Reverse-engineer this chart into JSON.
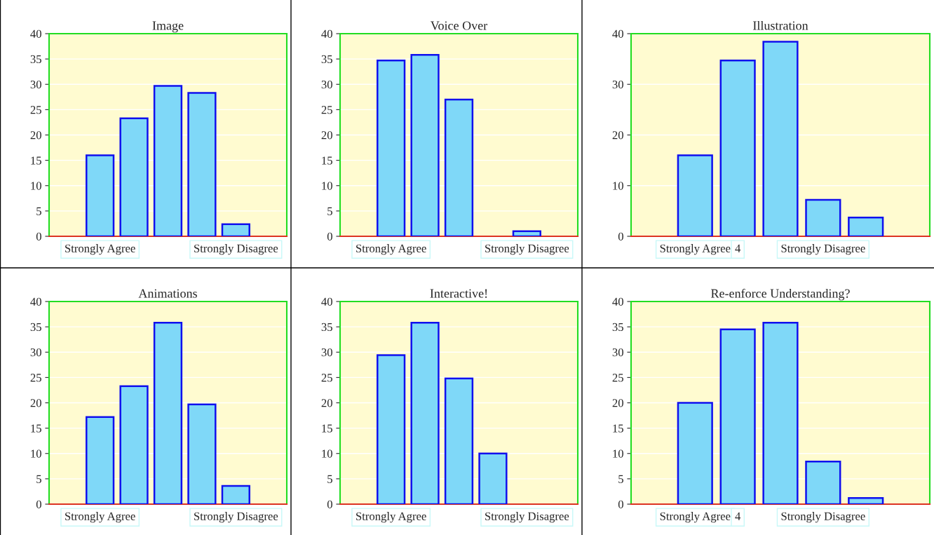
{
  "chart_data": [
    {
      "type": "bar",
      "title": "Image",
      "categories": [
        null,
        "Strongly Agree",
        null,
        null,
        null,
        "Strongly Disagree",
        null
      ],
      "values": [
        null,
        16,
        23.3,
        29.7,
        28.3,
        2.4,
        null
      ],
      "color": "#7fd8f8",
      "ylim": [
        0,
        40
      ],
      "yticks": [
        0,
        5,
        10,
        15,
        20,
        25,
        30,
        35,
        40
      ],
      "grid": "y"
    },
    {
      "type": "bar",
      "title": "Voice Over",
      "categories": [
        null,
        "Strongly Agree",
        null,
        null,
        null,
        "Strongly Disagree",
        null
      ],
      "values": [
        null,
        34.7,
        35.8,
        27,
        null,
        1,
        null
      ],
      "color": "#7fd8f8",
      "ylim": [
        0,
        40
      ],
      "yticks": [
        0,
        5,
        10,
        15,
        20,
        25,
        30,
        35,
        40
      ],
      "grid": "y"
    },
    {
      "type": "bar",
      "title": "Illustration",
      "categories": [
        null,
        "Strongly Agree",
        "4",
        null,
        "Strongly Disagree",
        null,
        null
      ],
      "values": [
        null,
        16,
        34.7,
        38.4,
        7.2,
        3.7,
        null
      ],
      "color": "#7fd8f8",
      "ylim": [
        0,
        40
      ],
      "yticks": [
        0,
        10,
        20,
        30,
        40
      ],
      "grid": "y"
    },
    {
      "type": "bar",
      "title": "Animations",
      "categories": [
        null,
        "Strongly Agree",
        null,
        null,
        null,
        "Strongly Disagree",
        null
      ],
      "values": [
        null,
        17.2,
        23.3,
        35.8,
        19.7,
        3.6,
        null
      ],
      "color": "#7fd8f8",
      "ylim": [
        0,
        40
      ],
      "yticks": [
        0,
        5,
        10,
        15,
        20,
        25,
        30,
        35,
        40
      ],
      "grid": "y"
    },
    {
      "type": "bar",
      "title": "Interactive!",
      "categories": [
        null,
        "Strongly Agree",
        null,
        null,
        null,
        "Strongly Disagree",
        null
      ],
      "values": [
        null,
        29.4,
        35.8,
        24.8,
        10,
        null,
        null
      ],
      "color": "#7fd8f8",
      "ylim": [
        0,
        40
      ],
      "yticks": [
        0,
        5,
        10,
        15,
        20,
        25,
        30,
        35,
        40
      ],
      "grid": "y"
    },
    {
      "type": "bar",
      "title": "Re-enforce Understanding?",
      "categories": [
        null,
        "Strongly Agree",
        "4",
        null,
        "Strongly Disagree",
        null,
        null
      ],
      "values": [
        null,
        20,
        34.5,
        35.8,
        8.4,
        1.2,
        null
      ],
      "color": "#7fd8f8",
      "ylim": [
        0,
        40
      ],
      "yticks": [
        0,
        5,
        10,
        15,
        20,
        25,
        30,
        35,
        40
      ],
      "grid": "y"
    }
  ]
}
